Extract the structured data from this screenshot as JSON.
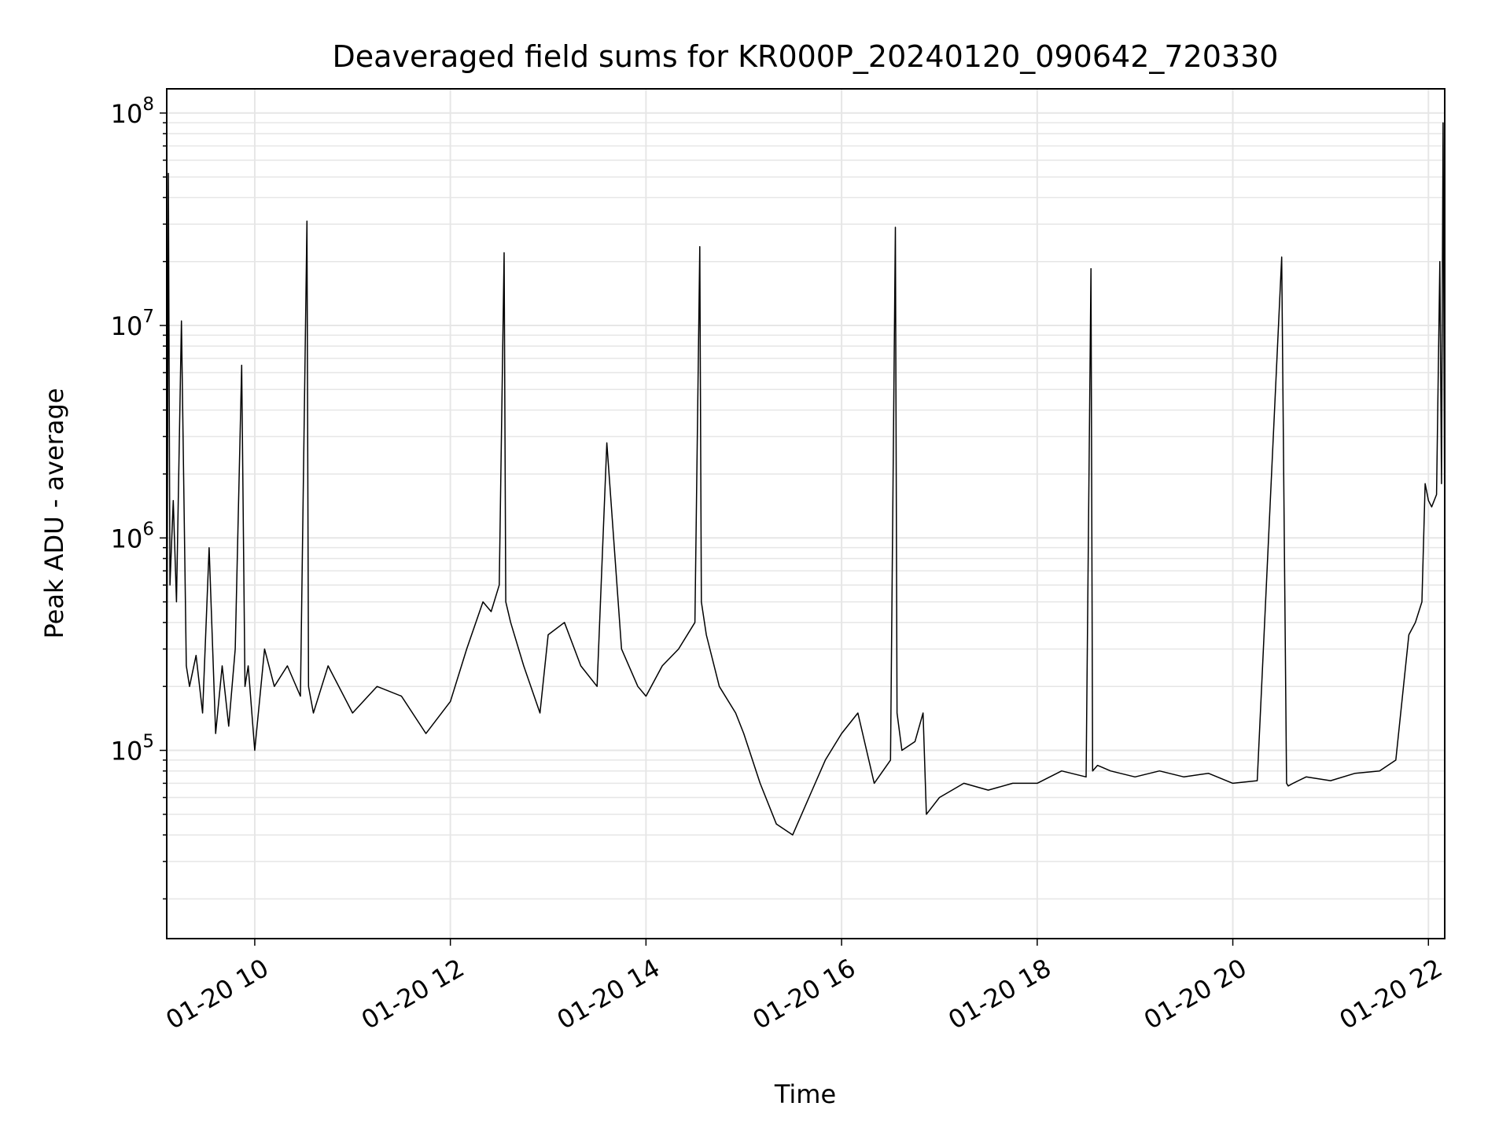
{
  "chart_data": {
    "type": "line",
    "title": "Deaveraged field sums for KR000P_20240120_090642_720330",
    "xlabel": "Time",
    "ylabel": "Peak ADU - average",
    "yscale": "log",
    "xlim": [
      "2024-01-20 09:06",
      "2024-01-20 22:10"
    ],
    "ylim": [
      13000,
      130000000
    ],
    "grid": true,
    "x_ticks": [
      {
        "x": "2024-01-20 10:00",
        "label": "01-20 10"
      },
      {
        "x": "2024-01-20 12:00",
        "label": "01-20 12"
      },
      {
        "x": "2024-01-20 14:00",
        "label": "01-20 14"
      },
      {
        "x": "2024-01-20 16:00",
        "label": "01-20 16"
      },
      {
        "x": "2024-01-20 18:00",
        "label": "01-20 18"
      },
      {
        "x": "2024-01-20 20:00",
        "label": "01-20 20"
      },
      {
        "x": "2024-01-20 22:00",
        "label": "01-20 22"
      }
    ],
    "y_ticks": [
      {
        "y": 100000,
        "base": "10",
        "exp": "5"
      },
      {
        "y": 1000000,
        "base": "10",
        "exp": "6"
      },
      {
        "y": 10000000,
        "base": "10",
        "exp": "7"
      },
      {
        "y": 100000000,
        "base": "10",
        "exp": "8"
      }
    ],
    "line_color": "#000000",
    "grid_color": "#e6e6e6",
    "series": [
      {
        "x": [
          "2024-01-20 09:06",
          "2024-01-20 09:07",
          "2024-01-20 09:08",
          "2024-01-20 09:10",
          "2024-01-20 09:12",
          "2024-01-20 09:15",
          "2024-01-20 09:18",
          "2024-01-20 09:20",
          "2024-01-20 09:24",
          "2024-01-20 09:28",
          "2024-01-20 09:32",
          "2024-01-20 09:36",
          "2024-01-20 09:40",
          "2024-01-20 09:44",
          "2024-01-20 09:48",
          "2024-01-20 09:52",
          "2024-01-20 09:54",
          "2024-01-20 09:56",
          "2024-01-20 10:00",
          "2024-01-20 10:06",
          "2024-01-20 10:12",
          "2024-01-20 10:20",
          "2024-01-20 10:28",
          "2024-01-20 10:32",
          "2024-01-20 10:33",
          "2024-01-20 10:36",
          "2024-01-20 10:45",
          "2024-01-20 11:00",
          "2024-01-20 11:15",
          "2024-01-20 11:30",
          "2024-01-20 11:45",
          "2024-01-20 12:00",
          "2024-01-20 12:10",
          "2024-01-20 12:20",
          "2024-01-20 12:25",
          "2024-01-20 12:30",
          "2024-01-20 12:33",
          "2024-01-20 12:34",
          "2024-01-20 12:37",
          "2024-01-20 12:45",
          "2024-01-20 12:55",
          "2024-01-20 13:00",
          "2024-01-20 13:10",
          "2024-01-20 13:20",
          "2024-01-20 13:30",
          "2024-01-20 13:36",
          "2024-01-20 13:45",
          "2024-01-20 13:55",
          "2024-01-20 14:00",
          "2024-01-20 14:10",
          "2024-01-20 14:20",
          "2024-01-20 14:30",
          "2024-01-20 14:33",
          "2024-01-20 14:34",
          "2024-01-20 14:37",
          "2024-01-20 14:45",
          "2024-01-20 14:55",
          "2024-01-20 15:00",
          "2024-01-20 15:10",
          "2024-01-20 15:20",
          "2024-01-20 15:30",
          "2024-01-20 15:40",
          "2024-01-20 15:50",
          "2024-01-20 16:00",
          "2024-01-20 16:10",
          "2024-01-20 16:20",
          "2024-01-20 16:30",
          "2024-01-20 16:33",
          "2024-01-20 16:34",
          "2024-01-20 16:37",
          "2024-01-20 16:45",
          "2024-01-20 16:50",
          "2024-01-20 16:52",
          "2024-01-20 17:00",
          "2024-01-20 17:15",
          "2024-01-20 17:30",
          "2024-01-20 17:45",
          "2024-01-20 18:00",
          "2024-01-20 18:15",
          "2024-01-20 18:30",
          "2024-01-20 18:33",
          "2024-01-20 18:34",
          "2024-01-20 18:37",
          "2024-01-20 18:45",
          "2024-01-20 19:00",
          "2024-01-20 19:15",
          "2024-01-20 19:30",
          "2024-01-20 19:45",
          "2024-01-20 20:00",
          "2024-01-20 20:15",
          "2024-01-20 20:30",
          "2024-01-20 20:33",
          "2024-01-20 20:34",
          "2024-01-20 20:37",
          "2024-01-20 20:45",
          "2024-01-20 21:00",
          "2024-01-20 21:15",
          "2024-01-20 21:30",
          "2024-01-20 21:40",
          "2024-01-20 21:48",
          "2024-01-20 21:52",
          "2024-01-20 21:56",
          "2024-01-20 21:58",
          "2024-01-20 22:00",
          "2024-01-20 22:02",
          "2024-01-20 22:05",
          "2024-01-20 22:07",
          "2024-01-20 22:08",
          "2024-01-20 22:09",
          "2024-01-20 22:10"
        ],
        "y": [
          90000,
          52000000,
          600000,
          1500000,
          500000,
          10500000,
          250000,
          200000,
          280000,
          150000,
          900000,
          120000,
          250000,
          130000,
          300000,
          6500000,
          200000,
          250000,
          100000,
          300000,
          200000,
          250000,
          180000,
          31000000,
          200000,
          150000,
          250000,
          150000,
          200000,
          180000,
          120000,
          170000,
          300000,
          500000,
          450000,
          600000,
          22000000,
          500000,
          400000,
          250000,
          150000,
          350000,
          400000,
          250000,
          200000,
          2800000,
          300000,
          200000,
          180000,
          250000,
          300000,
          400000,
          23500000,
          500000,
          350000,
          200000,
          150000,
          120000,
          70000,
          45000,
          40000,
          60000,
          90000,
          120000,
          150000,
          70000,
          90000,
          29000000,
          150000,
          100000,
          110000,
          150000,
          50000,
          60000,
          70000,
          65000,
          70000,
          70000,
          80000,
          75000,
          18500000,
          80000,
          85000,
          80000,
          75000,
          80000,
          75000,
          78000,
          70000,
          72000,
          21000000,
          70000,
          68000,
          70000,
          75000,
          72000,
          78000,
          80000,
          90000,
          350000,
          400000,
          500000,
          1800000,
          1500000,
          1400000,
          1600000,
          20000000,
          1800000,
          90000000,
          1000000
        ]
      }
    ]
  }
}
